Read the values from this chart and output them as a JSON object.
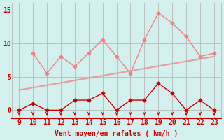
{
  "x_rafales": [
    10,
    11,
    12,
    13,
    14,
    15,
    16,
    17,
    18,
    19,
    20,
    21,
    22,
    23
  ],
  "y_rafales": [
    8.5,
    5.5,
    8.0,
    6.5,
    8.5,
    10.5,
    8.0,
    5.5,
    10.5,
    14.5,
    13.0,
    11.0,
    8.0,
    8.5
  ],
  "x_vent": [
    9,
    10,
    11,
    12,
    13,
    14,
    15,
    16,
    17,
    18,
    19,
    20,
    21,
    22,
    23
  ],
  "y_vent": [
    0.0,
    1.0,
    0.0,
    0.0,
    1.5,
    1.5,
    2.5,
    0.0,
    1.5,
    1.5,
    4.0,
    2.5,
    0.0,
    1.5,
    0.0
  ],
  "trend_x": [
    9,
    23
  ],
  "trend_y": [
    3.0,
    8.0
  ],
  "background_color": "#d4f0ee",
  "rafales_color": "#f08080",
  "vent_color": "#cc0000",
  "grid_color": "#b0b0b0",
  "xlabel": "Vent moyen/en rafales ( km/h )",
  "yticks": [
    0,
    5,
    10,
    15
  ],
  "ylim": [
    -1.2,
    16
  ],
  "xlim": [
    8.5,
    23.5
  ],
  "axis_fontsize": 7,
  "tick_fontsize": 7
}
